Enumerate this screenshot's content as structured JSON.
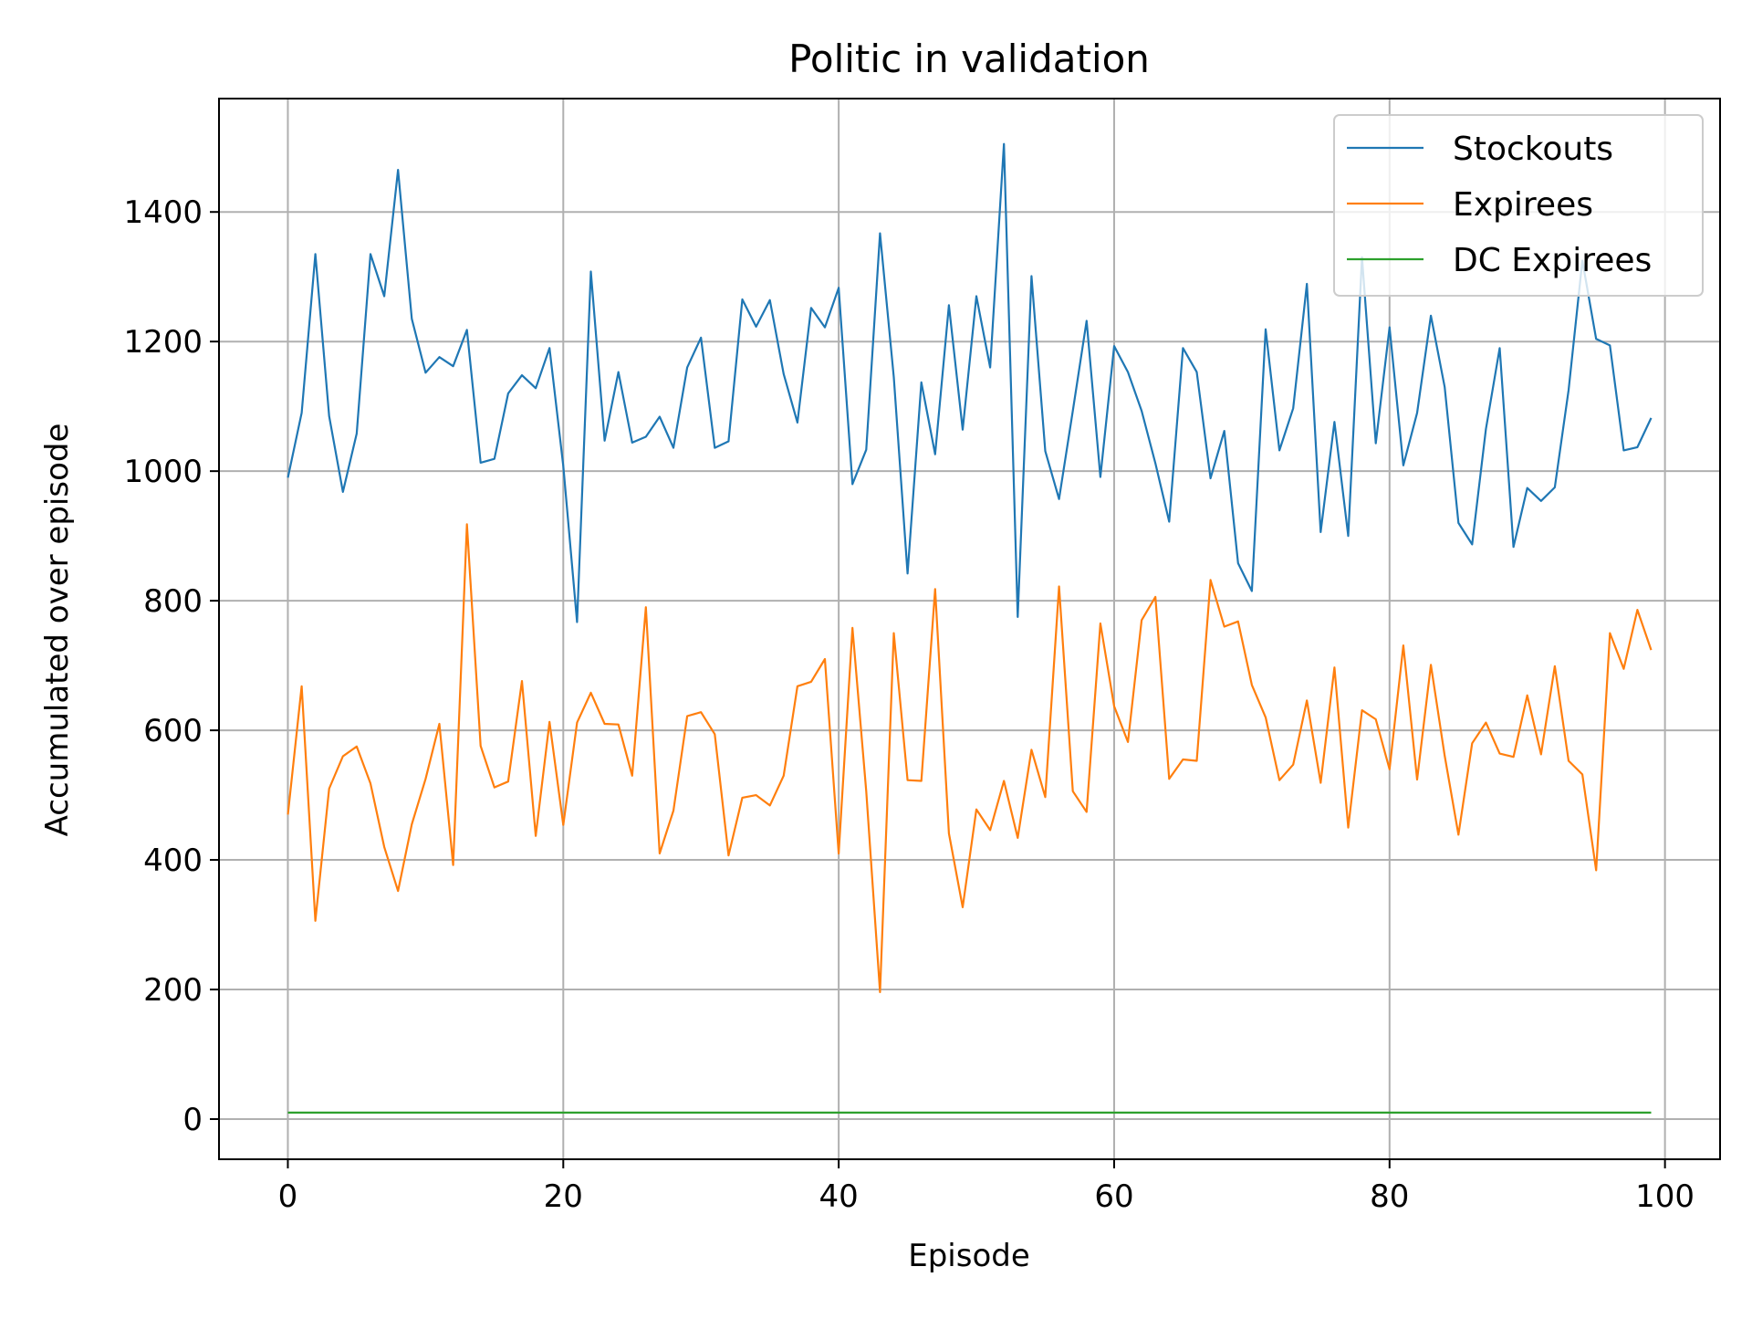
{
  "chart_data": {
    "type": "line",
    "title": "Politic in validation",
    "xlabel": "Episode",
    "ylabel": "Accumulated over episode",
    "xlim": [
      -5,
      104
    ],
    "ylim": [
      -62,
      1575
    ],
    "xticks": [
      0,
      20,
      40,
      60,
      80,
      100
    ],
    "yticks": [
      0,
      200,
      400,
      600,
      800,
      1000,
      1200,
      1400
    ],
    "grid": true,
    "legend_position": "top-right",
    "x": [
      0,
      1,
      2,
      3,
      4,
      5,
      6,
      7,
      8,
      9,
      10,
      11,
      12,
      13,
      14,
      15,
      16,
      17,
      18,
      19,
      20,
      21,
      22,
      23,
      24,
      25,
      26,
      27,
      28,
      29,
      30,
      31,
      32,
      33,
      34,
      35,
      36,
      37,
      38,
      39,
      40,
      41,
      42,
      43,
      44,
      45,
      46,
      47,
      48,
      49,
      50,
      51,
      52,
      53,
      54,
      55,
      56,
      57,
      58,
      59,
      60,
      61,
      62,
      63,
      64,
      65,
      66,
      67,
      68,
      69,
      70,
      71,
      72,
      73,
      74,
      75,
      76,
      77,
      78,
      79,
      80,
      81,
      82,
      83,
      84,
      85,
      86,
      87,
      88,
      89,
      90,
      91,
      92,
      93,
      94,
      95,
      96,
      97,
      98,
      99
    ],
    "series": [
      {
        "name": "Stockouts",
        "color": "#1f77b4",
        "values": [
          990,
          1090,
          1335,
          1085,
          968,
          1058,
          1335,
          1270,
          1465,
          1235,
          1152,
          1176,
          1162,
          1218,
          1013,
          1019,
          1120,
          1148,
          1128,
          1190,
          1008,
          767,
          1308,
          1047,
          1153,
          1044,
          1053,
          1084,
          1036,
          1160,
          1206,
          1036,
          1046,
          1265,
          1223,
          1264,
          1150,
          1075,
          1252,
          1222,
          1283,
          980,
          1033,
          1367,
          1145,
          842,
          1137,
          1026,
          1256,
          1064,
          1270,
          1160,
          1505,
          775,
          1301,
          1031,
          957,
          1093,
          1232,
          991,
          1193,
          1153,
          1093,
          1012,
          922,
          1190,
          1153,
          989,
          1062,
          858,
          815,
          1219,
          1032,
          1097,
          1289,
          906,
          1076,
          900,
          1330,
          1043,
          1222,
          1009,
          1090,
          1240,
          1130,
          920,
          887,
          1065,
          1190,
          883,
          974,
          954,
          975,
          1125,
          1325,
          1204,
          1194,
          1032,
          1037,
          1082
        ]
      },
      {
        "name": "Expirees",
        "color": "#ff7f0e",
        "values": [
          470,
          668,
          306,
          510,
          560,
          575,
          518,
          420,
          352,
          455,
          525,
          610,
          392,
          918,
          576,
          512,
          521,
          676,
          437,
          613,
          454,
          612,
          658,
          610,
          609,
          530,
          790,
          410,
          476,
          622,
          628,
          594,
          407,
          496,
          500,
          484,
          530,
          668,
          675,
          710,
          410,
          758,
          506,
          196,
          750,
          523,
          522,
          818,
          441,
          327,
          478,
          446,
          522,
          434,
          570,
          497,
          822,
          506,
          474,
          765,
          637,
          582,
          770,
          806,
          525,
          555,
          553,
          832,
          760,
          768,
          670,
          620,
          523,
          547,
          646,
          519,
          697,
          450,
          631,
          617,
          540,
          731,
          524,
          701,
          561,
          439,
          580,
          612,
          564,
          559,
          654,
          563,
          699,
          553,
          532,
          384,
          750,
          695,
          786,
          724
        ]
      },
      {
        "name": "DC Expirees",
        "color": "#2ca02c",
        "values": [
          10,
          10,
          10,
          10,
          10,
          10,
          10,
          10,
          10,
          10,
          10,
          10,
          10,
          10,
          10,
          10,
          10,
          10,
          10,
          10,
          10,
          10,
          10,
          10,
          10,
          10,
          10,
          10,
          10,
          10,
          10,
          10,
          10,
          10,
          10,
          10,
          10,
          10,
          10,
          10,
          10,
          10,
          10,
          10,
          10,
          10,
          10,
          10,
          10,
          10,
          10,
          10,
          10,
          10,
          10,
          10,
          10,
          10,
          10,
          10,
          10,
          10,
          10,
          10,
          10,
          10,
          10,
          10,
          10,
          10,
          10,
          10,
          10,
          10,
          10,
          10,
          10,
          10,
          10,
          10,
          10,
          10,
          10,
          10,
          10,
          10,
          10,
          10,
          10,
          10,
          10,
          10,
          10,
          10,
          10,
          10,
          10,
          10,
          10,
          10
        ]
      }
    ]
  }
}
